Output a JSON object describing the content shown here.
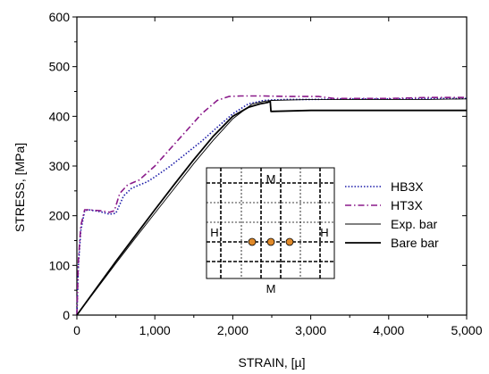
{
  "chart_data": {
    "type": "line",
    "xlabel": "STRAIN,   [µ]",
    "ylabel": "STRESS,   [MPa]",
    "xlim": [
      0,
      5000
    ],
    "ylim": [
      0,
      600
    ],
    "xticks": [
      0,
      1000,
      2000,
      3000,
      4000,
      5000
    ],
    "xtick_labels": [
      "0",
      "1,000",
      "2,000",
      "3,000",
      "4,000",
      "5,000"
    ],
    "yticks": [
      0,
      100,
      200,
      300,
      400,
      500,
      600
    ],
    "ytick_labels": [
      "0",
      "100",
      "200",
      "300",
      "400",
      "500",
      "600"
    ],
    "grid": false,
    "legend_position": "right",
    "series": [
      {
        "name": "HB3X",
        "color": "#1a1aa8",
        "style": "dotted",
        "x": [
          0,
          20,
          50,
          100,
          150,
          300,
          420,
          500,
          600,
          700,
          800,
          900,
          1000,
          1200,
          1400,
          1600,
          1800,
          2000,
          2200,
          2400,
          2500,
          2700,
          3000,
          3500,
          4000,
          4500,
          5000
        ],
        "y": [
          0,
          100,
          170,
          210,
          212,
          208,
          203,
          205,
          240,
          255,
          262,
          268,
          278,
          300,
          325,
          350,
          378,
          405,
          425,
          432,
          433,
          434,
          434,
          435,
          435,
          436,
          436
        ]
      },
      {
        "name": "HT3X",
        "color": "#8a1a8a",
        "style": "dash-dot",
        "x": [
          0,
          20,
          50,
          100,
          150,
          300,
          420,
          480,
          550,
          650,
          800,
          1000,
          1200,
          1400,
          1600,
          1800,
          1950,
          2100,
          2400,
          2700,
          3000,
          3100,
          3300,
          3500,
          4000,
          4500,
          5000
        ],
        "y": [
          0,
          110,
          180,
          212,
          212,
          210,
          207,
          210,
          245,
          262,
          272,
          300,
          335,
          370,
          405,
          432,
          440,
          441,
          441,
          440,
          440,
          440,
          436,
          436,
          436,
          438,
          438
        ]
      },
      {
        "name": "Exp. bar",
        "color": "#000000",
        "style": "thin",
        "x": [
          0,
          250,
          500,
          750,
          1000,
          1250,
          1500,
          1750,
          2000,
          2250,
          2400,
          2500,
          3000,
          3500,
          4000,
          4500,
          5000
        ],
        "y": [
          0,
          52,
          104,
          155,
          205,
          255,
          305,
          352,
          395,
          425,
          430,
          432,
          434,
          434,
          434,
          434,
          435
        ]
      },
      {
        "name": "Bare bar",
        "color": "#000000",
        "style": "thick",
        "x": [
          0,
          250,
          500,
          750,
          1000,
          1250,
          1500,
          1750,
          2000,
          2200,
          2350,
          2450,
          2480,
          2490,
          2500,
          3000,
          3500,
          4000,
          4500,
          5000
        ],
        "y": [
          0,
          54,
          108,
          160,
          212,
          263,
          313,
          360,
          400,
          418,
          425,
          428,
          430,
          410,
          410,
          412,
          412,
          412,
          412,
          412
        ]
      }
    ],
    "inset": {
      "label_top": "M",
      "label_bottom": "M",
      "label_left": "H",
      "label_right": "H",
      "dot_color": "#e08a2a"
    }
  }
}
